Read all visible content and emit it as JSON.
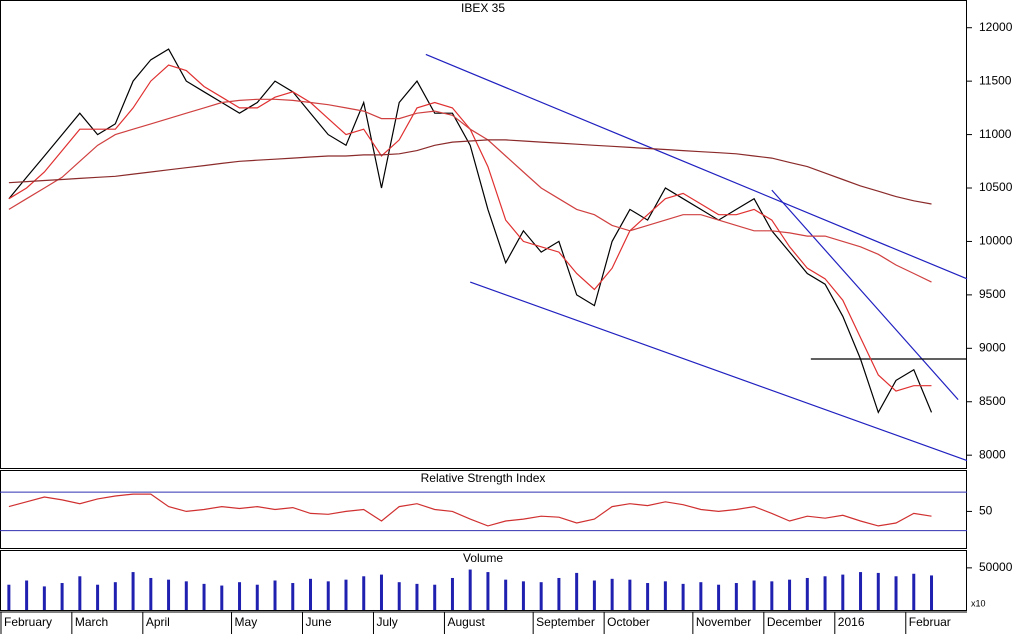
{
  "chart_data": [
    {
      "type": "line",
      "title": "IBEX 35",
      "categories": [
        "February",
        null,
        null,
        null,
        "March",
        null,
        null,
        null,
        "April",
        null,
        null,
        null,
        null,
        "May",
        null,
        null,
        null,
        "June",
        null,
        null,
        null,
        "July",
        null,
        null,
        null,
        "August",
        null,
        null,
        null,
        null,
        "September",
        null,
        null,
        null,
        "October",
        null,
        null,
        null,
        null,
        "November",
        null,
        null,
        null,
        "December",
        null,
        null,
        null,
        "2016",
        null,
        null,
        null,
        "Februar",
        null
      ],
      "series": [
        {
          "color": "#000000",
          "values": [
            10400,
            10600,
            10800,
            11000,
            11200,
            11000,
            11100,
            11500,
            11700,
            11800,
            11500,
            11400,
            11300,
            11200,
            11300,
            11500,
            11400,
            11200,
            11000,
            10900,
            11300,
            10500,
            11300,
            11500,
            11200,
            11200,
            10900,
            10300,
            9800,
            10100,
            9900,
            10000,
            9500,
            9400,
            10000,
            10300,
            10200,
            10500,
            10400,
            10300,
            10200,
            10300,
            10400,
            10100,
            9900,
            9700,
            9600,
            9300,
            8900,
            8400,
            8700,
            8800,
            8400
          ]
        },
        {
          "color": "#e03030",
          "values": [
            10400,
            10500,
            10650,
            10850,
            11050,
            11050,
            11050,
            11250,
            11500,
            11650,
            11600,
            11450,
            11350,
            11250,
            11250,
            11350,
            11400,
            11300,
            11150,
            11000,
            11050,
            10800,
            10950,
            11250,
            11300,
            11250,
            11050,
            10700,
            10200,
            10000,
            9950,
            9900,
            9700,
            9550,
            9750,
            10100,
            10250,
            10400,
            10450,
            10350,
            10250,
            10250,
            10300,
            10200,
            9950,
            9750,
            9650,
            9450,
            9100,
            8750,
            8600,
            8650,
            8650
          ]
        },
        {
          "color": "#d04040",
          "values": [
            10300,
            10400,
            10500,
            10600,
            10750,
            10900,
            11000,
            11050,
            11100,
            11150,
            11200,
            11250,
            11300,
            11320,
            11330,
            11330,
            11320,
            11300,
            11280,
            11250,
            11220,
            11150,
            11150,
            11200,
            11220,
            11180,
            11050,
            10950,
            10800,
            10650,
            10500,
            10400,
            10300,
            10250,
            10150,
            10100,
            10150,
            10200,
            10250,
            10250,
            10200,
            10150,
            10100,
            10100,
            10080,
            10050,
            10050,
            10000,
            9950,
            9880,
            9780,
            9700,
            9620
          ]
        },
        {
          "color": "#8b2a2a",
          "values": [
            10550,
            10560,
            10570,
            10580,
            10590,
            10600,
            10610,
            10630,
            10650,
            10670,
            10690,
            10710,
            10730,
            10750,
            10760,
            10770,
            10780,
            10790,
            10800,
            10800,
            10810,
            10810,
            10820,
            10850,
            10900,
            10930,
            10940,
            10950,
            10950,
            10940,
            10930,
            10920,
            10910,
            10900,
            10890,
            10880,
            10870,
            10860,
            10850,
            10840,
            10830,
            10820,
            10800,
            10780,
            10740,
            10700,
            10640,
            10580,
            10520,
            10470,
            10420,
            10380,
            10350
          ]
        }
      ],
      "trendlines": [
        {
          "color": "#2020c0",
          "x": [
            23.5,
            54
          ],
          "values": [
            11750,
            9650
          ]
        },
        {
          "color": "#2020c0",
          "x": [
            26,
            54
          ],
          "values": [
            9620,
            7950
          ]
        },
        {
          "color": "#2020c0",
          "x": [
            43,
            53.5
          ],
          "values": [
            10480,
            8520
          ]
        },
        {
          "color": "#000000",
          "x": [
            45.2,
            54
          ],
          "values": [
            8900,
            8900
          ]
        }
      ],
      "xlim": [
        -0.5,
        54
      ],
      "ylim": [
        7880,
        12250
      ],
      "yticks": [
        8000,
        8500,
        9000,
        9500,
        10000,
        10500,
        11000,
        11500,
        12000
      ]
    },
    {
      "type": "line",
      "title": "Relative Strength Index",
      "series": [
        {
          "color": "#d03030",
          "values": [
            55,
            60,
            65,
            62,
            58,
            63,
            66,
            68,
            68,
            55,
            50,
            52,
            55,
            53,
            55,
            52,
            54,
            48,
            47,
            50,
            52,
            40,
            55,
            58,
            52,
            50,
            42,
            35,
            40,
            42,
            45,
            44,
            38,
            42,
            55,
            58,
            56,
            60,
            57,
            52,
            50,
            52,
            55,
            48,
            40,
            45,
            43,
            46,
            40,
            35,
            38,
            48,
            45
          ]
        }
      ],
      "levels": [
        30,
        70
      ],
      "level_color": "#3030b0",
      "xlim": [
        -0.5,
        54
      ],
      "ylim": [
        12,
        92
      ],
      "yticks": [
        50
      ]
    },
    {
      "type": "bar",
      "title": "Volume",
      "unit_label": "x10",
      "color": "#2020b0",
      "values": [
        30000,
        35000,
        28000,
        32000,
        40000,
        30000,
        33000,
        45000,
        38000,
        36000,
        34000,
        31000,
        29000,
        33000,
        30000,
        35000,
        32000,
        37000,
        34000,
        36000,
        40000,
        42000,
        33000,
        31000,
        30000,
        38000,
        48000,
        45000,
        36000,
        34000,
        33000,
        38000,
        44000,
        35000,
        37000,
        36000,
        32000,
        34000,
        31000,
        33000,
        30000,
        32000,
        35000,
        34000,
        36000,
        38000,
        40000,
        42000,
        45000,
        44000,
        40000,
        43000,
        41000
      ],
      "xlim": [
        -0.5,
        54
      ],
      "ylim": [
        0,
        70000
      ],
      "yticks": [
        50000
      ]
    }
  ]
}
